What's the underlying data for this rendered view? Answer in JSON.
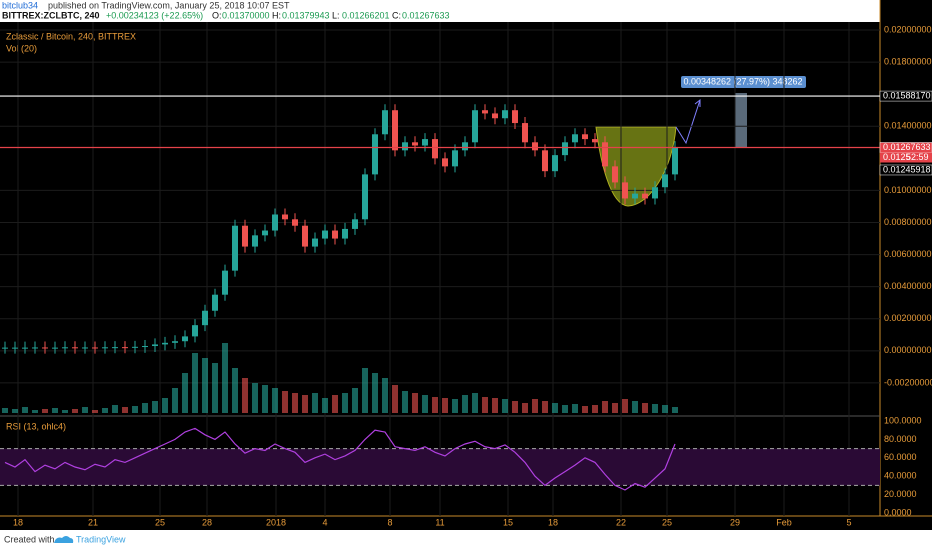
{
  "header": {
    "author": "bitclub34",
    "published": "published on TradingView.com, January 25, 2018 10:07 EST",
    "ticker": "BITTREX:ZCLBTC, 240",
    "change": "+0.00234123 (+22.65%)",
    "ohlc": [
      {
        "key": "O:",
        "value": "0.01370000"
      },
      {
        "key": "H:",
        "value": "0.01379943"
      },
      {
        "key": "L:",
        "value": "0.01266201"
      },
      {
        "key": "C:",
        "value": "0.01267633"
      }
    ]
  },
  "chart_data": {
    "type": "candlestick",
    "title": "Zclassic / Bitcoin, 240, BITTREX",
    "volume_title": "Vol (20)",
    "rsi_title": "RSI (13, ohlc4)",
    "up_color": "#26a69a",
    "down_color": "#ef5350",
    "grid": true,
    "ylim": [
      -0.004,
      0.0205
    ],
    "yticks": [
      {
        "value": 0.02,
        "label": "0.02000000"
      },
      {
        "value": 0.018,
        "label": "0.01800000"
      },
      {
        "value": 0.014,
        "label": "0.01400000"
      },
      {
        "value": 0.01,
        "label": "0.01000000"
      },
      {
        "value": 0.008,
        "label": "0.00800000"
      },
      {
        "value": 0.006,
        "label": "0.00600000"
      },
      {
        "value": 0.004,
        "label": "0.00400000"
      },
      {
        "value": 0.002,
        "label": "0.00200000"
      },
      {
        "value": 0,
        "label": "0.00000000"
      },
      {
        "value": -0.002,
        "label": "-0.00200000"
      }
    ],
    "xlim": [
      -0.5,
      87.5
    ],
    "xticks": [
      {
        "value": 1.3,
        "label": "18"
      },
      {
        "value": 8.8,
        "label": "21"
      },
      {
        "value": 15.5,
        "label": "25"
      },
      {
        "value": 20.2,
        "label": "28"
      },
      {
        "value": 27.1,
        "label": "2018"
      },
      {
        "value": 32,
        "label": "4"
      },
      {
        "value": 38.5,
        "label": "8"
      },
      {
        "value": 43.5,
        "label": "11"
      },
      {
        "value": 50.3,
        "label": "15"
      },
      {
        "value": 54.8,
        "label": "18"
      },
      {
        "value": 61.6,
        "label": "22"
      },
      {
        "value": 66.2,
        "label": "25"
      },
      {
        "value": 73,
        "label": "29"
      },
      {
        "value": 77.9,
        "label": "Feb"
      },
      {
        "value": 84.4,
        "label": "5"
      }
    ],
    "series": [
      {
        "name": "ZCLBTC",
        "values": [
          0.0002,
          0.0002,
          0.0002,
          0.00021,
          0.0002,
          0.0002,
          0.00022,
          0.0002,
          0.00021,
          0.0002,
          0.00022,
          0.00023,
          0.00022,
          0.00025,
          0.0003,
          0.0004,
          0.0005,
          0.0006,
          0.0009,
          0.0016,
          0.0025,
          0.0035,
          0.005,
          0.0078,
          0.0065,
          0.0072,
          0.0075,
          0.0085,
          0.0082,
          0.0078,
          0.0065,
          0.007,
          0.0075,
          0.007,
          0.0076,
          0.0082,
          0.011,
          0.0135,
          0.015,
          0.0125,
          0.013,
          0.0128,
          0.0132,
          0.012,
          0.0115,
          0.0125,
          0.013,
          0.015,
          0.0148,
          0.0145,
          0.015,
          0.0142,
          0.013,
          0.0125,
          0.0112,
          0.0122,
          0.013,
          0.0135,
          0.0132,
          0.013,
          0.0115,
          0.0105,
          0.0095,
          0.0098,
          0.0095,
          0.0102,
          0.011,
          0.0127
        ]
      }
    ],
    "vlim": [
      0,
      100
    ],
    "volume": [
      5,
      4,
      6,
      3,
      4,
      5,
      3,
      4,
      6,
      3,
      5,
      8,
      6,
      7,
      10,
      12,
      15,
      25,
      40,
      60,
      55,
      50,
      70,
      45,
      35,
      30,
      28,
      25,
      22,
      20,
      18,
      20,
      15,
      18,
      20,
      25,
      45,
      40,
      35,
      28,
      22,
      20,
      18,
      16,
      15,
      14,
      18,
      20,
      16,
      15,
      14,
      12,
      10,
      14,
      12,
      10,
      8,
      9,
      7,
      8,
      12,
      10,
      14,
      12,
      10,
      9,
      8,
      6
    ],
    "rsi_lim": [
      0,
      100
    ],
    "rsi_ticks": [
      {
        "value": 100,
        "label": "100.0000"
      },
      {
        "value": 80,
        "label": "80.0000"
      },
      {
        "value": 60,
        "label": "60.0000"
      },
      {
        "value": 40,
        "label": "40.0000"
      },
      {
        "value": 20,
        "label": "20.0000"
      },
      {
        "value": 0,
        "label": "0.0000"
      }
    ],
    "rsi_bands": [
      30,
      70
    ],
    "rsi_color": "#b040e0",
    "rsi": [
      55,
      50,
      58,
      45,
      52,
      48,
      55,
      50,
      47,
      53,
      50,
      58,
      55,
      60,
      65,
      70,
      75,
      80,
      88,
      92,
      85,
      80,
      88,
      75,
      65,
      70,
      68,
      75,
      70,
      66,
      55,
      60,
      64,
      58,
      62,
      68,
      80,
      90,
      88,
      72,
      70,
      68,
      72,
      66,
      62,
      70,
      75,
      78,
      72,
      70,
      74,
      66,
      55,
      40,
      30,
      38,
      45,
      52,
      60,
      55,
      42,
      30,
      25,
      32,
      28,
      38,
      48,
      75
    ],
    "price_labels": [
      {
        "value": 0.0158817,
        "label": "0.01588170",
        "color": "#ffffff"
      },
      {
        "value": 0.01267633,
        "label": "0.01267633",
        "color": "#e5434a"
      },
      {
        "value": 0.01245918,
        "label": "0.01245918",
        "color": "#ffffff"
      }
    ],
    "countdown": {
      "price": "0.0125",
      "time": "52:59"
    },
    "measure": "0.00348262 (27.97%) 348262"
  },
  "footer": {
    "created": "Created with",
    "brand": "TradingView"
  }
}
